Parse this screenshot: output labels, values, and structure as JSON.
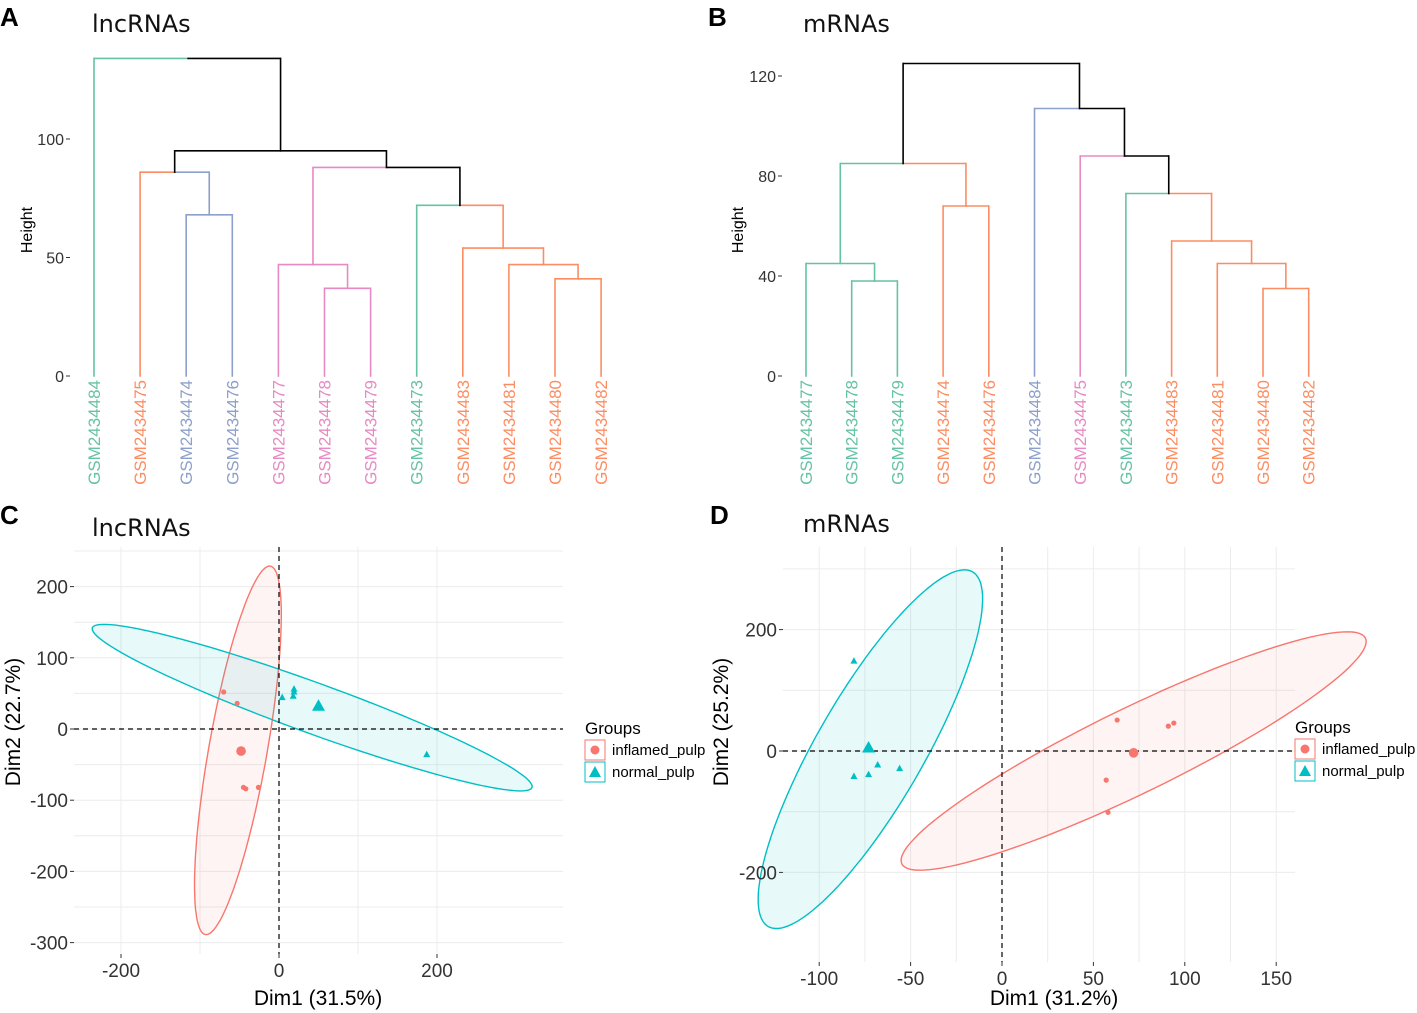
{
  "colors": {
    "green": "#66c2a5",
    "orange": "#fc8d62",
    "blue": "#8da0cb",
    "pink": "#e78ac3",
    "black": "#000000",
    "inflamed": "#f8766d",
    "normal": "#00bfc4"
  },
  "chart_data": [
    {
      "id": "A",
      "panel_label": "A",
      "type": "dendrogram",
      "title": "lncRNAs",
      "ylabel": "Height",
      "ylim": [
        0,
        135
      ],
      "yticks": [
        0,
        50,
        100
      ],
      "leaves": [
        {
          "label": "GSM2434484",
          "color": "green"
        },
        {
          "label": "GSM2434475",
          "color": "orange"
        },
        {
          "label": "GSM2434474",
          "color": "blue"
        },
        {
          "label": "GSM2434476",
          "color": "blue"
        },
        {
          "label": "GSM2434477",
          "color": "pink"
        },
        {
          "label": "GSM2434478",
          "color": "pink"
        },
        {
          "label": "GSM2434479",
          "color": "pink"
        },
        {
          "label": "GSM2434473",
          "color": "green"
        },
        {
          "label": "GSM2434483",
          "color": "orange"
        },
        {
          "label": "GSM2434481",
          "color": "orange"
        },
        {
          "label": "GSM2434480",
          "color": "orange"
        },
        {
          "label": "GSM2434482",
          "color": "orange"
        }
      ],
      "merges": [
        {
          "a": "L2",
          "b": "L3",
          "h": 68,
          "color": "blue"
        },
        {
          "a": "L1",
          "b": "m0",
          "h": 86,
          "color": "blue",
          "left_color": "orange"
        },
        {
          "a": "L5",
          "b": "L6",
          "h": 37,
          "color": "pink"
        },
        {
          "a": "L4",
          "b": "m2",
          "h": 47,
          "color": "pink"
        },
        {
          "a": "L10",
          "b": "L11",
          "h": 41,
          "color": "orange"
        },
        {
          "a": "L9",
          "b": "m4",
          "h": 47,
          "color": "orange"
        },
        {
          "a": "L8",
          "b": "m5",
          "h": 54,
          "color": "orange"
        },
        {
          "a": "L7",
          "b": "m6",
          "h": 72,
          "color": "orange",
          "left_color": "green"
        },
        {
          "a": "m3",
          "b": "m7",
          "h": 88,
          "color": "black",
          "left_color": "pink"
        },
        {
          "a": "m1",
          "b": "m8",
          "h": 95,
          "color": "black"
        },
        {
          "a": "L0",
          "b": "m9",
          "h": 134,
          "color": "black",
          "left_color": "green"
        }
      ]
    },
    {
      "id": "B",
      "panel_label": "B",
      "type": "dendrogram",
      "title": "mRNAs",
      "ylabel": "Height",
      "ylim": [
        0,
        125
      ],
      "yticks": [
        0,
        40,
        80,
        120
      ],
      "leaves": [
        {
          "label": "GSM2434477",
          "color": "green"
        },
        {
          "label": "GSM2434478",
          "color": "green"
        },
        {
          "label": "GSM2434479",
          "color": "green"
        },
        {
          "label": "GSM2434474",
          "color": "orange"
        },
        {
          "label": "GSM2434476",
          "color": "orange"
        },
        {
          "label": "GSM2434484",
          "color": "blue"
        },
        {
          "label": "GSM2434475",
          "color": "pink"
        },
        {
          "label": "GSM2434473",
          "color": "green"
        },
        {
          "label": "GSM2434483",
          "color": "orange"
        },
        {
          "label": "GSM2434481",
          "color": "orange"
        },
        {
          "label": "GSM2434480",
          "color": "orange"
        },
        {
          "label": "GSM2434482",
          "color": "orange"
        }
      ],
      "merges": [
        {
          "a": "L1",
          "b": "L2",
          "h": 38,
          "color": "green"
        },
        {
          "a": "L0",
          "b": "m0",
          "h": 45,
          "color": "green"
        },
        {
          "a": "L3",
          "b": "L4",
          "h": 68,
          "color": "orange"
        },
        {
          "a": "m1",
          "b": "m2",
          "h": 85,
          "color": "orange",
          "left_color": "green"
        },
        {
          "a": "L10",
          "b": "L11",
          "h": 35,
          "color": "orange"
        },
        {
          "a": "L9",
          "b": "m4",
          "h": 45,
          "color": "orange"
        },
        {
          "a": "L8",
          "b": "m5",
          "h": 54,
          "color": "orange"
        },
        {
          "a": "L7",
          "b": "m6",
          "h": 73,
          "color": "orange",
          "left_color": "green"
        },
        {
          "a": "L6",
          "b": "m7",
          "h": 88,
          "color": "black",
          "left_color": "pink"
        },
        {
          "a": "L5",
          "b": "m8",
          "h": 107,
          "color": "black",
          "left_color": "blue"
        },
        {
          "a": "m3",
          "b": "m9",
          "h": 125,
          "color": "black"
        }
      ]
    },
    {
      "id": "C",
      "panel_label": "C",
      "type": "scatter",
      "title": "lncRNAs",
      "xlabel": "Dim1 (31.5%)",
      "ylabel": "Dim2 (22.7%)",
      "xlim": [
        -250,
        360
      ],
      "ylim": [
        -305,
        260
      ],
      "xticks": [
        -200,
        0,
        200
      ],
      "yticks": [
        -300,
        -200,
        -100,
        0,
        100,
        200
      ],
      "legend_title": "Groups",
      "legend_position": "right",
      "series": [
        {
          "name": "inflamed_pulp",
          "color": "inflamed",
          "marker": "circle",
          "points": [
            [
              -70,
              52
            ],
            [
              -53,
              36
            ],
            [
              -45,
              -82
            ],
            [
              -42,
              -84
            ],
            [
              -26,
              -82
            ]
          ],
          "centroid": [
            -48,
            -31
          ],
          "ellipse": {
            "center": [
              -52,
              -30
            ],
            "semi_major": 262,
            "semi_minor": 37,
            "angle_deg": 81
          }
        },
        {
          "name": "normal_pulp",
          "color": "normal",
          "marker": "triangle",
          "points": [
            [
              4,
              44
            ],
            [
              18,
              46
            ],
            [
              19,
              52
            ],
            [
              19,
              56
            ],
            [
              187,
              -36
            ]
          ],
          "centroid": [
            50,
            32
          ],
          "ellipse": {
            "center": [
              42,
              30
            ],
            "semi_major": 300,
            "semi_minor": 35,
            "angle_deg": -22
          }
        }
      ]
    },
    {
      "id": "D",
      "panel_label": "D",
      "type": "scatter",
      "title": "mRNAs",
      "xlabel": "Dim1 (31.2%)",
      "ylabel": "Dim2 (25.2%)",
      "xlim": [
        -122,
        158
      ],
      "ylim": [
        -300,
        310
      ],
      "xticks": [
        -100,
        -50,
        0,
        50,
        100,
        150
      ],
      "yticks": [
        -200,
        0,
        200
      ],
      "legend_title": "Groups",
      "legend_position": "right",
      "series": [
        {
          "name": "inflamed_pulp",
          "color": "inflamed",
          "marker": "circle",
          "points": [
            [
              63,
              51
            ],
            [
              91,
              41
            ],
            [
              94,
              46
            ],
            [
              57,
              -48
            ],
            [
              58,
              -101
            ]
          ],
          "centroid": [
            72,
            -3
          ],
          "ellipse": {
            "center": [
              72,
              0
            ],
            "semi_major": 230,
            "semi_minor": 43,
            "angle_deg": 58
          }
        },
        {
          "name": "normal_pulp",
          "color": "normal",
          "marker": "triangle",
          "points": [
            [
              -81,
              148
            ],
            [
              -81,
              -42
            ],
            [
              -73,
              -39
            ],
            [
              -68,
              -23
            ],
            [
              -56,
              -29
            ]
          ],
          "centroid": [
            -73,
            5
          ],
          "ellipse": {
            "center": [
              -72,
              3
            ],
            "semi_major": 300,
            "semi_minor": 33,
            "angle_deg": 80
          }
        }
      ]
    }
  ]
}
